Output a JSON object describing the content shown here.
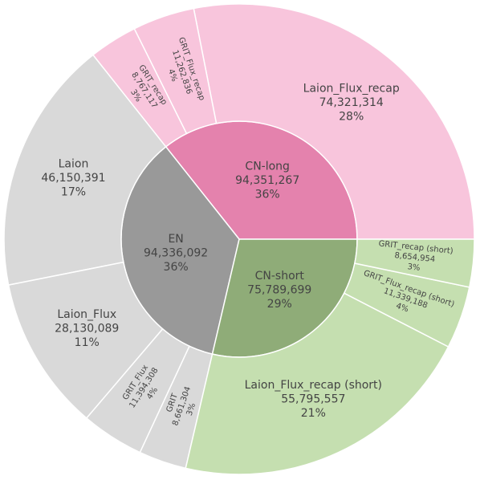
{
  "chart_data": {
    "type": "sunburst",
    "nodes": [
      {
        "name": "CN-long",
        "value": 94351267,
        "value_label": "94,351,267",
        "percent_label": "36%",
        "color": "#e482ad",
        "child_color": "#f8c5dc",
        "children": [
          {
            "name": "Laion_Flux_recap",
            "value": 74321314,
            "value_label": "74,321,314",
            "percent_label": "28%"
          },
          {
            "name": "GRIT_Flux_recap",
            "value": 11262836,
            "value_label": "11,262,836",
            "percent_label": "4%"
          },
          {
            "name": "GRIT_recap",
            "value": 8767117,
            "value_label": "8,767,117",
            "percent_label": "3%"
          }
        ]
      },
      {
        "name": "EN",
        "value": 94336092,
        "value_label": "94,336,092",
        "percent_label": "36%",
        "color": "#999999",
        "child_color": "#d9d9d9",
        "children": [
          {
            "name": "Laion",
            "value": 46150391,
            "value_label": "46,150,391",
            "percent_label": "17%"
          },
          {
            "name": "Laion_Flux",
            "value": 28130089,
            "value_label": "28,130,089",
            "percent_label": "11%"
          },
          {
            "name": "GRIT_Flux",
            "value": 11394308,
            "value_label": "11,394,308",
            "percent_label": "4%"
          },
          {
            "name": "GRIT",
            "value": 8661304,
            "value_label": "8,661,304",
            "percent_label": "3%"
          }
        ]
      },
      {
        "name": "CN-short",
        "value": 75789699,
        "value_label": "75,789,699",
        "percent_label": "29%",
        "color": "#8fac78",
        "child_color": "#c5dfb0",
        "children": [
          {
            "name": "Laion_Flux_recap (short)",
            "value": 55795557,
            "value_label": "55,795,557",
            "percent_label": "21%"
          },
          {
            "name": "GRIT_Flux_recap (short)",
            "value": 11339188,
            "value_label": "11,339,188",
            "percent_label": "4%"
          },
          {
            "name": "GRIT_recap (short)",
            "value": 8654954,
            "value_label": "8,654,954",
            "percent_label": "3%"
          }
        ]
      }
    ]
  }
}
